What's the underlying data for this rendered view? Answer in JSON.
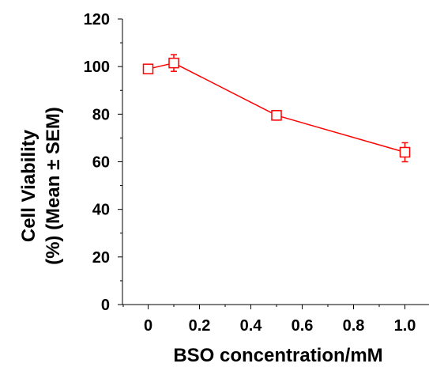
{
  "chart_data": {
    "type": "line",
    "title": "",
    "xlabel": "BSO concentration/mM",
    "ylabel_lines": [
      "Cell Viability",
      "(%) (Mean ± SEM)"
    ],
    "x_ticks": [
      "0",
      "0.2",
      "0.4",
      "0.6",
      "0.8",
      "1.0"
    ],
    "y_ticks": [
      "0",
      "20",
      "40",
      "60",
      "80",
      "100",
      "120"
    ],
    "xlim": [
      -0.1,
      1.1
    ],
    "ylim": [
      0,
      120
    ],
    "grid": false,
    "legend": "none",
    "series": [
      {
        "marker": "open-square",
        "color": "#ff0000",
        "points": [
          {
            "x": 0.0,
            "y": 99,
            "err": 0
          },
          {
            "x": 0.1,
            "y": 101.5,
            "err": 3.5
          },
          {
            "x": 0.5,
            "y": 79.5,
            "err": 2
          },
          {
            "x": 1.0,
            "y": 64,
            "err": 4
          }
        ]
      }
    ]
  }
}
